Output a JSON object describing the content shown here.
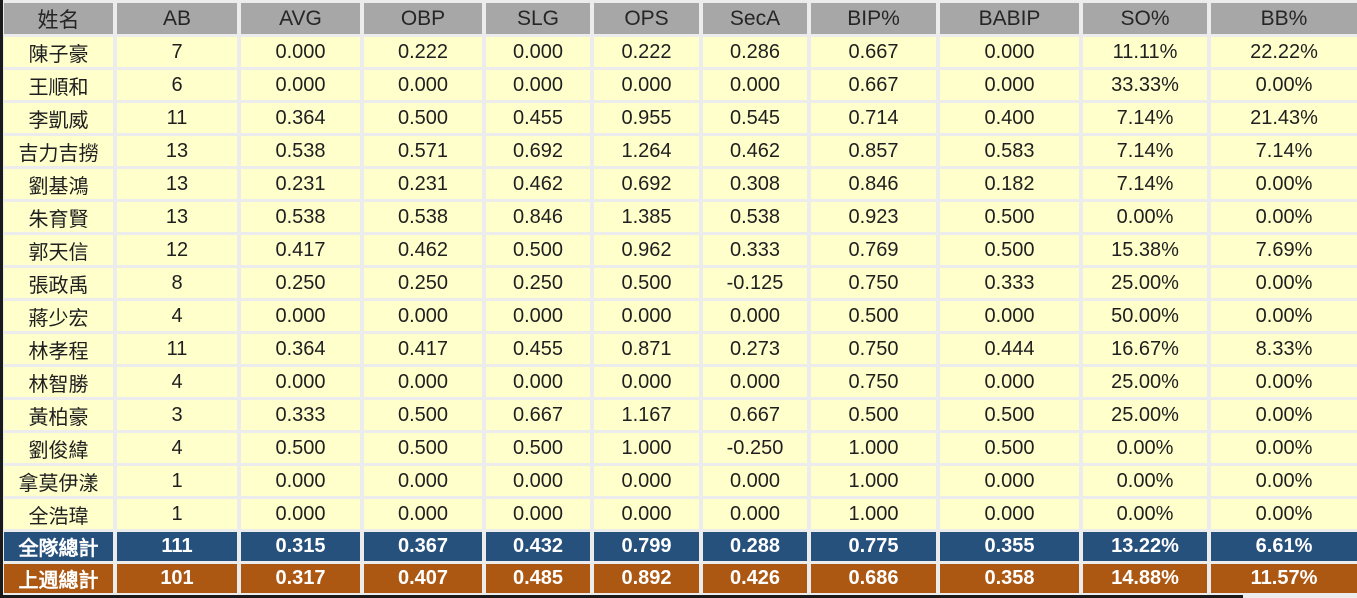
{
  "table": {
    "columns": [
      {
        "key": "name",
        "label": "姓名"
      },
      {
        "key": "ab",
        "label": "AB"
      },
      {
        "key": "avg",
        "label": "AVG"
      },
      {
        "key": "obp",
        "label": "OBP"
      },
      {
        "key": "slg",
        "label": "SLG"
      },
      {
        "key": "ops",
        "label": "OPS"
      },
      {
        "key": "seca",
        "label": "SecA"
      },
      {
        "key": "bip_pct",
        "label": "BIP%"
      },
      {
        "key": "babip",
        "label": "BABIP"
      },
      {
        "key": "so_pct",
        "label": "SO%"
      },
      {
        "key": "bb_pct",
        "label": "BB%"
      }
    ],
    "rows": [
      [
        "陳子豪",
        "7",
        "0.000",
        "0.222",
        "0.000",
        "0.222",
        "0.286",
        "0.667",
        "0.000",
        "11.11%",
        "22.22%"
      ],
      [
        "王順和",
        "6",
        "0.000",
        "0.000",
        "0.000",
        "0.000",
        "0.000",
        "0.667",
        "0.000",
        "33.33%",
        "0.00%"
      ],
      [
        "李凱威",
        "11",
        "0.364",
        "0.500",
        "0.455",
        "0.955",
        "0.545",
        "0.714",
        "0.400",
        "7.14%",
        "21.43%"
      ],
      [
        "吉力吉撈",
        "13",
        "0.538",
        "0.571",
        "0.692",
        "1.264",
        "0.462",
        "0.857",
        "0.583",
        "7.14%",
        "7.14%"
      ],
      [
        "劉基鴻",
        "13",
        "0.231",
        "0.231",
        "0.462",
        "0.692",
        "0.308",
        "0.846",
        "0.182",
        "7.14%",
        "0.00%"
      ],
      [
        "朱育賢",
        "13",
        "0.538",
        "0.538",
        "0.846",
        "1.385",
        "0.538",
        "0.923",
        "0.500",
        "0.00%",
        "0.00%"
      ],
      [
        "郭天信",
        "12",
        "0.417",
        "0.462",
        "0.500",
        "0.962",
        "0.333",
        "0.769",
        "0.500",
        "15.38%",
        "7.69%"
      ],
      [
        "張政禹",
        "8",
        "0.250",
        "0.250",
        "0.250",
        "0.500",
        "-0.125",
        "0.750",
        "0.333",
        "25.00%",
        "0.00%"
      ],
      [
        "蔣少宏",
        "4",
        "0.000",
        "0.000",
        "0.000",
        "0.000",
        "0.000",
        "0.500",
        "0.000",
        "50.00%",
        "0.00%"
      ],
      [
        "林孝程",
        "11",
        "0.364",
        "0.417",
        "0.455",
        "0.871",
        "0.273",
        "0.750",
        "0.444",
        "16.67%",
        "8.33%"
      ],
      [
        "林智勝",
        "4",
        "0.000",
        "0.000",
        "0.000",
        "0.000",
        "0.000",
        "0.750",
        "0.000",
        "25.00%",
        "0.00%"
      ],
      [
        "黃柏豪",
        "3",
        "0.333",
        "0.500",
        "0.667",
        "1.167",
        "0.667",
        "0.500",
        "0.500",
        "25.00%",
        "0.00%"
      ],
      [
        "劉俊緯",
        "4",
        "0.500",
        "0.500",
        "0.500",
        "1.000",
        "-0.250",
        "1.000",
        "0.500",
        "0.00%",
        "0.00%"
      ],
      [
        "拿莫伊漾",
        "1",
        "0.000",
        "0.000",
        "0.000",
        "0.000",
        "0.000",
        "1.000",
        "0.000",
        "0.00%",
        "0.00%"
      ],
      [
        "全浩瑋",
        "1",
        "0.000",
        "0.000",
        "0.000",
        "0.000",
        "0.000",
        "1.000",
        "0.000",
        "0.00%",
        "0.00%"
      ]
    ],
    "totals": [
      {
        "id": "team-total",
        "label": "全隊總計",
        "values": [
          "111",
          "0.315",
          "0.367",
          "0.432",
          "0.799",
          "0.288",
          "0.775",
          "0.355",
          "13.22%",
          "6.61%"
        ]
      },
      {
        "id": "lastweek-total",
        "label": "上週總計",
        "values": [
          "101",
          "0.317",
          "0.407",
          "0.485",
          "0.892",
          "0.426",
          "0.686",
          "0.358",
          "14.88%",
          "11.57%"
        ]
      }
    ]
  },
  "colors": {
    "header_bg": "#A7A7A7",
    "row_bg": "#FFFFCC",
    "team_total_bg": "#27517D",
    "lastweek_total_bg": "#AC5813",
    "total_text": "#FFFFFF",
    "grid_gap": "#ECECEC",
    "outer_border": "#1A1A1A"
  }
}
